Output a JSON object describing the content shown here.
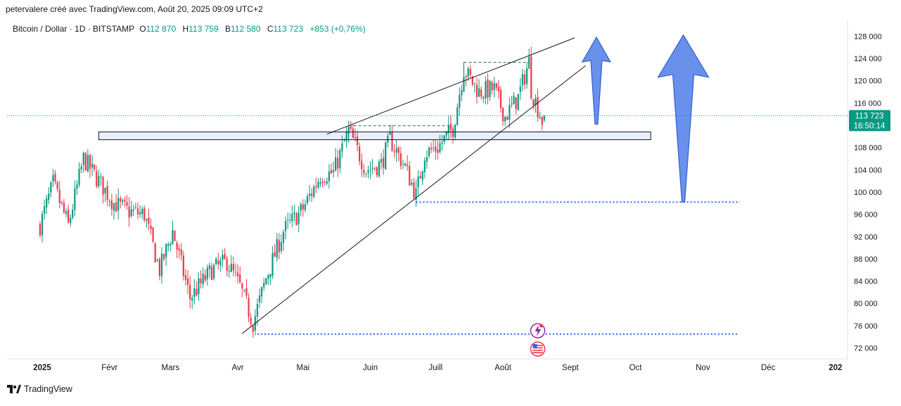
{
  "header": {
    "attribution": "petervalere créé avec TradingView.com, Août 20, 2025 09:09 UTC+2"
  },
  "legend": {
    "symbol": "Bitcoin / Dollar · 1D · BITSTAMP",
    "open_key": "O",
    "open": "112 870",
    "high_key": "H",
    "high": "113 759",
    "low_key": "B",
    "low": "112 580",
    "close_key": "C",
    "close": "113 723",
    "change": "+853 (+0,76%)"
  },
  "price_tag": {
    "price": "113 723",
    "countdown": "16:50:14"
  },
  "footer": {
    "brand": "TradingView"
  },
  "colors": {
    "up": "#089981",
    "down": "#f23645",
    "arrow": "#4f7ee8",
    "dotted_level": "#2962ff",
    "tag_bg": "#089981"
  },
  "chart_data": {
    "type": "candlestick",
    "yaxis_ticks": [
      "128 000",
      "124 000",
      "120 000",
      "116 000",
      "112 000",
      "108 000",
      "104 000",
      "100 000",
      "96 000",
      "92 000",
      "88 000",
      "84 000",
      "80 000",
      "76 000",
      "72 000"
    ],
    "xaxis_ticks": [
      "2025",
      "Févr",
      "Mars",
      "Avr",
      "Mai",
      "Juin",
      "Juill",
      "Août",
      "Sept",
      "Oct",
      "Nov",
      "Déc",
      "202"
    ],
    "ylim": [
      70500,
      131000
    ],
    "last_price": 113723,
    "anchors": [
      [
        "2024-12-31",
        94000
      ],
      [
        "2025-01-06",
        101500
      ],
      [
        "2025-01-13",
        94000
      ],
      [
        "2025-01-20",
        106000
      ],
      [
        "2025-01-27",
        102000
      ],
      [
        "2025-02-03",
        98000
      ],
      [
        "2025-02-10",
        96500
      ],
      [
        "2025-02-17",
        96000
      ],
      [
        "2025-02-24",
        86000
      ],
      [
        "2025-03-02",
        93000
      ],
      [
        "2025-03-10",
        81000
      ],
      [
        "2025-03-20",
        86000
      ],
      [
        "2025-03-27",
        87500
      ],
      [
        "2025-04-02",
        83000
      ],
      [
        "2025-04-08",
        76500
      ],
      [
        "2025-04-14",
        84500
      ],
      [
        "2025-04-22",
        93000
      ],
      [
        "2025-05-01",
        97000
      ],
      [
        "2025-05-09",
        103000
      ],
      [
        "2025-05-15",
        103500
      ],
      [
        "2025-05-22",
        111000
      ],
      [
        "2025-05-30",
        104000
      ],
      [
        "2025-06-06",
        105000
      ],
      [
        "2025-06-10",
        109500
      ],
      [
        "2025-06-17",
        104500
      ],
      [
        "2025-06-22",
        99500
      ],
      [
        "2025-06-26",
        107000
      ],
      [
        "2025-07-02",
        108000
      ],
      [
        "2025-07-09",
        111500
      ],
      [
        "2025-07-14",
        122000
      ],
      [
        "2025-07-21",
        118000
      ],
      [
        "2025-07-28",
        118500
      ],
      [
        "2025-08-02",
        113500
      ],
      [
        "2025-08-08",
        117000
      ],
      [
        "2025-08-13",
        123500
      ],
      [
        "2025-08-14",
        118500
      ],
      [
        "2025-08-19",
        112800
      ],
      [
        "2025-08-20",
        113723
      ]
    ],
    "horizontal_zone": {
      "from": "2025-01-27",
      "to": "2025-10-08",
      "low": 109400,
      "high": 110800
    },
    "wedge_lines": [
      {
        "from": [
          "2025-05-12",
          110400
        ],
        "to": [
          "2025-09-03",
          127700
        ]
      },
      {
        "from": [
          "2025-04-03",
          74600
        ],
        "to": [
          "2025-09-08",
          122700
        ]
      }
    ],
    "dashed_boxes": [
      {
        "from": [
          "2025-05-22",
          111900
        ],
        "to": [
          "2025-07-07",
          111900
        ]
      },
      {
        "from": [
          "2025-07-14",
          123300
        ],
        "to": [
          "2025-08-13",
          123300
        ]
      }
    ],
    "dotted_levels": [
      {
        "from": "2025-06-22",
        "to": "2025-11-18",
        "value": 98200
      },
      {
        "from": "2025-04-10",
        "to": "2025-11-17",
        "value": 74500
      }
    ],
    "arrows": [
      {
        "date": "2025-09-13",
        "from": 112200,
        "to": 127800,
        "size": "small"
      },
      {
        "date": "2025-10-23",
        "from": 98200,
        "to": 128200,
        "size": "large"
      }
    ]
  }
}
